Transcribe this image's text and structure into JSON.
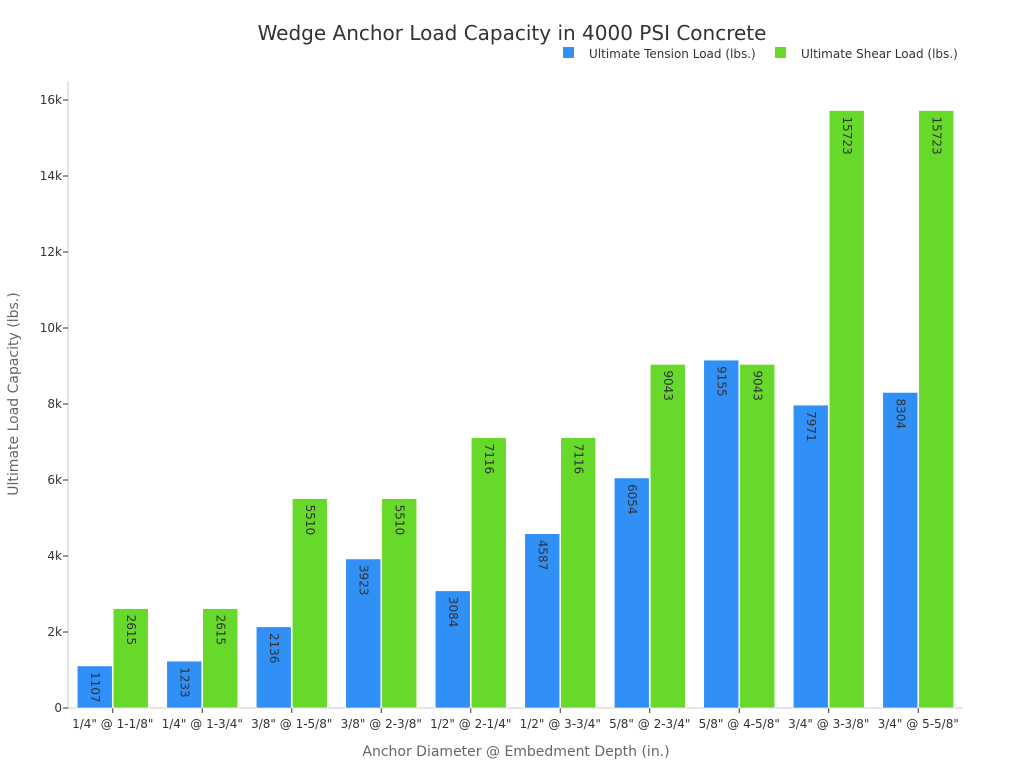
{
  "chart_data": {
    "type": "bar",
    "title": "Wedge Anchor Load Capacity in 4000 PSI Concrete",
    "xlabel": "Anchor Diameter @ Embedment Depth (in.)",
    "ylabel": "Ultimate Load Capacity (lbs.)",
    "ylim": [
      0,
      16500
    ],
    "yticks": [
      0,
      2000,
      4000,
      6000,
      8000,
      10000,
      12000,
      14000,
      16000
    ],
    "ytick_labels": [
      "0",
      "2k",
      "4k",
      "6k",
      "8k",
      "10k",
      "12k",
      "14k",
      "16k"
    ],
    "grid": false,
    "legend_position": "top-right",
    "categories": [
      "1/4\" @ 1-1/8\"",
      "1/4\" @ 1-3/4\"",
      "3/8\" @ 1-5/8\"",
      "3/8\" @ 2-3/8\"",
      "1/2\" @ 2-1/4\"",
      "1/2\" @ 3-3/4\"",
      "5/8\" @ 2-3/4\"",
      "5/8\" @ 4-5/8\"",
      "3/4\" @ 3-3/8\"",
      "3/4\" @ 5-5/8\""
    ],
    "series": [
      {
        "name": "Ultimate Tension Load (lbs.)",
        "color": "#3090f5",
        "values": [
          1107,
          1233,
          2136,
          3923,
          3084,
          4587,
          6054,
          9155,
          7971,
          8304
        ]
      },
      {
        "name": "Ultimate Shear Load (lbs.)",
        "color": "#66d92a",
        "values": [
          2615,
          2615,
          5510,
          5510,
          7116,
          7116,
          9043,
          9043,
          15723,
          15723
        ]
      }
    ]
  }
}
